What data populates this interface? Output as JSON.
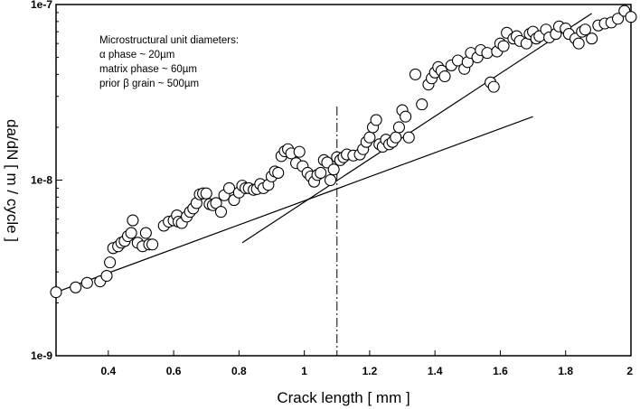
{
  "chart_data": {
    "type": "scatter",
    "title": "",
    "xlabel": "Crack length  [ mm ]",
    "ylabel": "da/dN [ m / cycle ]",
    "x_scale": "linear",
    "y_scale": "log",
    "xlim": [
      0.24,
      2.0
    ],
    "ylim": [
      1e-09,
      1e-07
    ],
    "x_ticks": [
      {
        "value": 0.4,
        "label": "0.4"
      },
      {
        "value": 0.6,
        "label": "0.6"
      },
      {
        "value": 0.8,
        "label": "0.8"
      },
      {
        "value": 1.0,
        "label": "1"
      },
      {
        "value": 1.2,
        "label": "1.2"
      },
      {
        "value": 1.4,
        "label": "1.4"
      },
      {
        "value": 1.6,
        "label": "1.6"
      },
      {
        "value": 1.8,
        "label": "1.8"
      },
      {
        "value": 2.0,
        "label": "2"
      }
    ],
    "y_ticks": [
      {
        "value": 1e-09,
        "label": "1e-9"
      },
      {
        "value": 1e-08,
        "label": "1e-8"
      },
      {
        "value": 1e-07,
        "label": "1e-7"
      }
    ],
    "grid": false,
    "annotation_lines": [
      "Microstructural unit diameters:",
      "α phase ~ 20µm",
      "matrix phase ~ 60µm",
      "prior β grain ~ 500µm"
    ],
    "vertical_line_x": 1.1,
    "fit_lines": [
      {
        "x": [
          0.24,
          1.7
        ],
        "y": [
          2.3e-09,
          2.3e-08
        ]
      },
      {
        "x": [
          0.81,
          1.88
        ],
        "y": [
          4.4e-09,
          8.9e-08
        ]
      }
    ],
    "series": [
      {
        "points": [
          [
            0.24,
            2.3e-09
          ],
          [
            0.3,
            2.45e-09
          ],
          [
            0.335,
            2.6e-09
          ],
          [
            0.375,
            2.65e-09
          ],
          [
            0.395,
            2.85e-09
          ],
          [
            0.405,
            3.4e-09
          ],
          [
            0.415,
            4.1e-09
          ],
          [
            0.43,
            4.2e-09
          ],
          [
            0.44,
            4.4e-09
          ],
          [
            0.45,
            4.5e-09
          ],
          [
            0.46,
            4.8e-09
          ],
          [
            0.47,
            5e-09
          ],
          [
            0.475,
            5.9e-09
          ],
          [
            0.49,
            4.4e-09
          ],
          [
            0.505,
            4.2e-09
          ],
          [
            0.515,
            5e-09
          ],
          [
            0.525,
            4.3e-09
          ],
          [
            0.535,
            4.3e-09
          ],
          [
            0.57,
            5.5e-09
          ],
          [
            0.585,
            5.8e-09
          ],
          [
            0.6,
            5.9e-09
          ],
          [
            0.61,
            6.3e-09
          ],
          [
            0.615,
            5.8e-09
          ],
          [
            0.625,
            5.7e-09
          ],
          [
            0.64,
            6.2e-09
          ],
          [
            0.65,
            6.6e-09
          ],
          [
            0.66,
            6.9e-09
          ],
          [
            0.67,
            7.4e-09
          ],
          [
            0.68,
            8.3e-09
          ],
          [
            0.69,
            8.4e-09
          ],
          [
            0.7,
            8.4e-09
          ],
          [
            0.71,
            7.3e-09
          ],
          [
            0.72,
            7.2e-09
          ],
          [
            0.73,
            7.4e-09
          ],
          [
            0.745,
            6.6e-09
          ],
          [
            0.755,
            8.2e-09
          ],
          [
            0.77,
            9e-09
          ],
          [
            0.785,
            7.7e-09
          ],
          [
            0.8,
            8.5e-09
          ],
          [
            0.81,
            9.3e-09
          ],
          [
            0.82,
            9e-09
          ],
          [
            0.83,
            9e-09
          ],
          [
            0.845,
            8.8e-09
          ],
          [
            0.855,
            8.9e-09
          ],
          [
            0.865,
            9.5e-09
          ],
          [
            0.875,
            9e-09
          ],
          [
            0.89,
            9.4e-09
          ],
          [
            0.9,
            1.05e-08
          ],
          [
            0.91,
            1.12e-08
          ],
          [
            0.92,
            1.1e-08
          ],
          [
            0.93,
            1.37e-08
          ],
          [
            0.94,
            1.46e-08
          ],
          [
            0.95,
            1.5e-08
          ],
          [
            0.96,
            1.42e-08
          ],
          [
            0.975,
            1.25e-08
          ],
          [
            0.985,
            1.45e-08
          ],
          [
            0.995,
            1.2e-08
          ],
          [
            1.01,
            1.1e-08
          ],
          [
            1.02,
            1.05e-08
          ],
          [
            1.03,
            9.8e-09
          ],
          [
            1.04,
            1.07e-08
          ],
          [
            1.05,
            1.1e-08
          ],
          [
            1.06,
            1.3e-08
          ],
          [
            1.07,
            1.26e-08
          ],
          [
            1.08,
            1e-08
          ],
          [
            1.09,
            1.15e-08
          ],
          [
            1.1,
            1.35e-08
          ],
          [
            1.11,
            1.3e-08
          ],
          [
            1.12,
            1.35e-08
          ],
          [
            1.13,
            1.4e-08
          ],
          [
            1.15,
            1.38e-08
          ],
          [
            1.17,
            1.4e-08
          ],
          [
            1.18,
            1.5e-08
          ],
          [
            1.19,
            1.65e-08
          ],
          [
            1.2,
            1.75e-08
          ],
          [
            1.21,
            2e-08
          ],
          [
            1.22,
            2.2e-08
          ],
          [
            1.23,
            1.6e-08
          ],
          [
            1.24,
            1.55e-08
          ],
          [
            1.25,
            1.7e-08
          ],
          [
            1.26,
            1.6e-08
          ],
          [
            1.27,
            1.65e-08
          ],
          [
            1.28,
            1.75e-08
          ],
          [
            1.29,
            2e-08
          ],
          [
            1.3,
            2.5e-08
          ],
          [
            1.31,
            2.3e-08
          ],
          [
            1.32,
            1.75e-08
          ],
          [
            1.34,
            4e-08
          ],
          [
            1.36,
            2.7e-08
          ],
          [
            1.38,
            3.5e-08
          ],
          [
            1.39,
            3.8e-08
          ],
          [
            1.4,
            4.1e-08
          ],
          [
            1.41,
            4.4e-08
          ],
          [
            1.42,
            4.2e-08
          ],
          [
            1.43,
            3.9e-08
          ],
          [
            1.45,
            4.5e-08
          ],
          [
            1.47,
            4.8e-08
          ],
          [
            1.49,
            4.3e-08
          ],
          [
            1.5,
            4.7e-08
          ],
          [
            1.51,
            5.3e-08
          ],
          [
            1.53,
            5e-08
          ],
          [
            1.54,
            5.5e-08
          ],
          [
            1.56,
            5.3e-08
          ],
          [
            1.57,
            3.6e-08
          ],
          [
            1.58,
            3.4e-08
          ],
          [
            1.59,
            5.4e-08
          ],
          [
            1.6,
            6e-08
          ],
          [
            1.61,
            5.8e-08
          ],
          [
            1.62,
            6.9e-08
          ],
          [
            1.64,
            6.4e-08
          ],
          [
            1.65,
            6.6e-08
          ],
          [
            1.66,
            6.2e-08
          ],
          [
            1.68,
            6e-08
          ],
          [
            1.69,
            6.8e-08
          ],
          [
            1.7,
            7e-08
          ],
          [
            1.71,
            6.4e-08
          ],
          [
            1.72,
            6.6e-08
          ],
          [
            1.74,
            7.2e-08
          ],
          [
            1.75,
            6.5e-08
          ],
          [
            1.77,
            6.8e-08
          ],
          [
            1.78,
            7.5e-08
          ],
          [
            1.8,
            7.3e-08
          ],
          [
            1.81,
            6.8e-08
          ],
          [
            1.83,
            6.4e-08
          ],
          [
            1.84,
            6e-08
          ],
          [
            1.85,
            7e-08
          ],
          [
            1.86,
            7.2e-08
          ],
          [
            1.88,
            6.4e-08
          ],
          [
            1.9,
            7.6e-08
          ],
          [
            1.92,
            7.8e-08
          ],
          [
            1.94,
            7.9e-08
          ],
          [
            1.96,
            8.3e-08
          ],
          [
            1.98,
            9.2e-08
          ],
          [
            2.0,
            8.5e-08
          ]
        ]
      }
    ]
  }
}
